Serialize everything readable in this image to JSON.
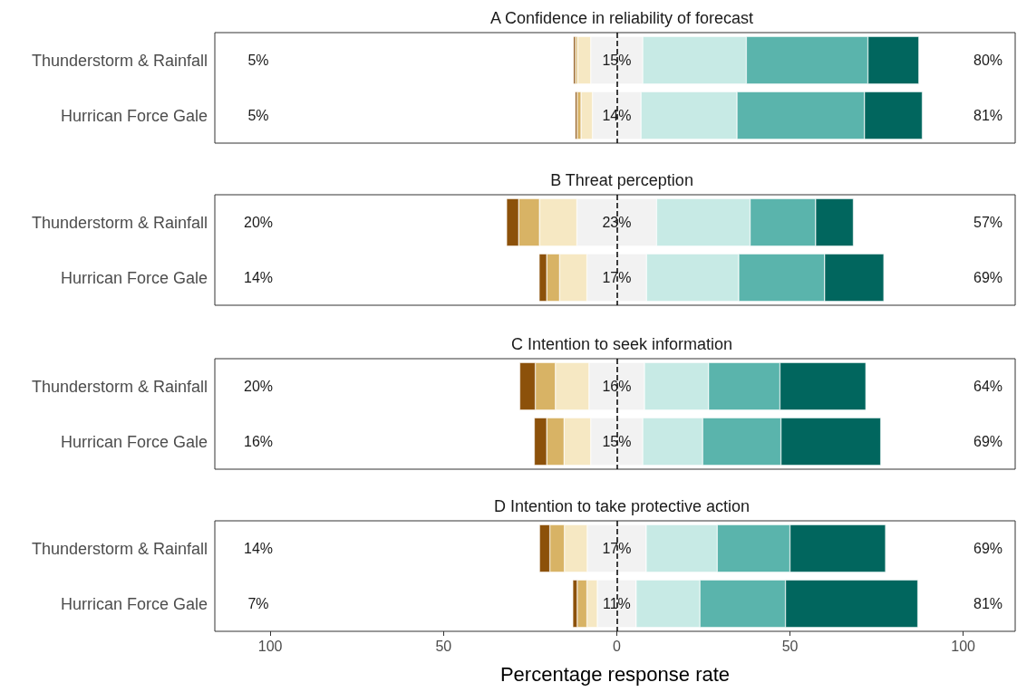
{
  "chart_data": [
    {
      "type": "bar",
      "orientation": "horizontal",
      "stacked": true,
      "title": "A Confidence in reliability of forecast",
      "categories": [
        "Thunderstorm & Rainfall",
        "Hurrican Force Gale"
      ],
      "tick_labels": "y",
      "xlim": [
        -116,
        115
      ],
      "series": [
        {
          "color": "#f2f2f2",
          "values": [
            -7.5,
            -7
          ]
        },
        {
          "color": "#f6e8c3",
          "values": [
            -3.8,
            -3.3
          ]
        },
        {
          "color": "#d8b365",
          "values": [
            -0.6,
            -1.1
          ]
        },
        {
          "color": "#8c510a",
          "values": [
            -0.6,
            -0.6
          ]
        },
        {
          "color": "#f2f2f2",
          "values": [
            7.5,
            7
          ]
        },
        {
          "color": "#c7eae5",
          "values": [
            29.9,
            27.7
          ]
        },
        {
          "color": "#5ab4ac",
          "values": [
            35.1,
            36.8
          ]
        },
        {
          "color": "#01665e",
          "values": [
            14.7,
            16.7
          ]
        }
      ],
      "ref_lines": [
        {
          "axis": "x",
          "value": 0,
          "line_style": "dashed",
          "color": "#000000"
        }
      ],
      "annotations": [
        "5%",
        "15%",
        "80%",
        "5%",
        "14%",
        "81%"
      ]
    },
    {
      "type": "bar",
      "orientation": "horizontal",
      "stacked": true,
      "title": "B Threat perception",
      "categories": [
        "Thunderstorm & Rainfall",
        "Hurrican Force Gale"
      ],
      "tick_labels": "y",
      "xlim": [
        -116,
        115
      ],
      "series": [
        {
          "color": "#f2f2f2",
          "values": [
            -11.5,
            -8.6
          ]
        },
        {
          "color": "#f6e8c3",
          "values": [
            -10.8,
            -7.9
          ]
        },
        {
          "color": "#d8b365",
          "values": [
            -6.0,
            -3.7
          ]
        },
        {
          "color": "#8c510a",
          "values": [
            -3.5,
            -2.2
          ]
        },
        {
          "color": "#f2f2f2",
          "values": [
            11.5,
            8.6
          ]
        },
        {
          "color": "#c7eae5",
          "values": [
            27.0,
            26.6
          ]
        },
        {
          "color": "#5ab4ac",
          "values": [
            18.9,
            24.8
          ]
        },
        {
          "color": "#01665e",
          "values": [
            10.9,
            17.1
          ]
        }
      ],
      "ref_lines": [
        {
          "axis": "x",
          "value": 0,
          "line_style": "dashed",
          "color": "#000000"
        }
      ],
      "annotations": [
        "20%",
        "23%",
        "57%",
        "14%",
        "17%",
        "69%"
      ]
    },
    {
      "type": "bar",
      "orientation": "horizontal",
      "stacked": true,
      "title": "C Intention to seek information",
      "categories": [
        "Thunderstorm & Rainfall",
        "Hurrican Force Gale"
      ],
      "tick_labels": "y",
      "xlim": [
        -116,
        115
      ],
      "series": [
        {
          "color": "#f2f2f2",
          "values": [
            -8,
            -7.5
          ]
        },
        {
          "color": "#f6e8c3",
          "values": [
            -9.7,
            -7.7
          ]
        },
        {
          "color": "#d8b365",
          "values": [
            -5.8,
            -5.0
          ]
        },
        {
          "color": "#8c510a",
          "values": [
            -4.5,
            -3.6
          ]
        },
        {
          "color": "#f2f2f2",
          "values": [
            8,
            7.5
          ]
        },
        {
          "color": "#c7eae5",
          "values": [
            18.5,
            17.3
          ]
        },
        {
          "color": "#5ab4ac",
          "values": [
            20.6,
            22.6
          ]
        },
        {
          "color": "#01665e",
          "values": [
            24.8,
            28.8
          ]
        }
      ],
      "ref_lines": [
        {
          "axis": "x",
          "value": 0,
          "line_style": "dashed",
          "color": "#000000"
        }
      ],
      "annotations": [
        "20%",
        "16%",
        "64%",
        "16%",
        "15%",
        "69%"
      ]
    },
    {
      "type": "bar",
      "orientation": "horizontal",
      "stacked": true,
      "title": "D Intention to take protective action",
      "xlabel": "Percentage response rate",
      "categories": [
        "Thunderstorm & Rainfall",
        "Hurrican Force Gale"
      ],
      "xlim": [
        -116,
        115
      ],
      "xticks": [
        {
          "value": -100,
          "label": "100"
        },
        {
          "value": -50,
          "label": "50"
        },
        0,
        50,
        100
      ],
      "series": [
        {
          "color": "#f2f2f2",
          "values": [
            -8.5,
            -5.6
          ]
        },
        {
          "color": "#f6e8c3",
          "values": [
            -6.6,
            -3.0
          ]
        },
        {
          "color": "#d8b365",
          "values": [
            -4.2,
            -2.8
          ]
        },
        {
          "color": "#8c510a",
          "values": [
            -3.0,
            -1.3
          ]
        },
        {
          "color": "#f2f2f2",
          "values": [
            8.5,
            5.6
          ]
        },
        {
          "color": "#c7eae5",
          "values": [
            20.5,
            18.4
          ]
        },
        {
          "color": "#5ab4ac",
          "values": [
            21.0,
            24.7
          ]
        },
        {
          "color": "#01665e",
          "values": [
            27.6,
            38.2
          ]
        }
      ],
      "ref_lines": [
        {
          "axis": "x",
          "value": 0,
          "line_style": "dashed",
          "color": "#000000"
        }
      ],
      "annotations": [
        "14%",
        "17%",
        "69%",
        "7%",
        "11%",
        "81%"
      ]
    }
  ]
}
